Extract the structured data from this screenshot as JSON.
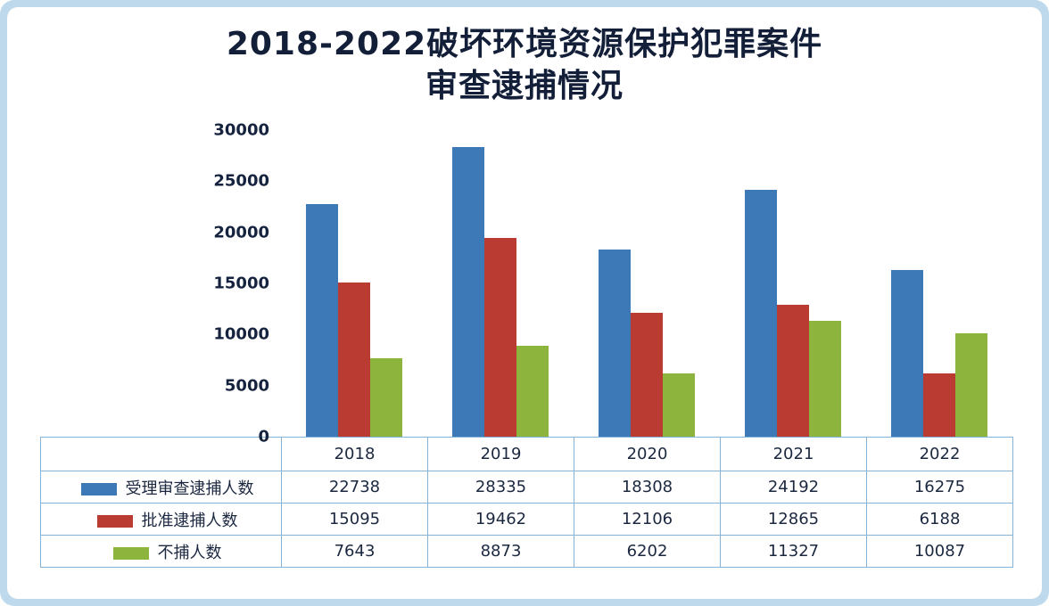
{
  "title": {
    "line1": "2018-2022破坏环境资源保护犯罪案件",
    "line2": "审查逮捕情况"
  },
  "colors": {
    "page_background": "#bed8ec",
    "card_background": "#ffffff",
    "series_blue": "#3d79b7",
    "series_red": "#ba3b32",
    "series_green": "#8db43d",
    "table_border": "#86b3d8",
    "text_dark": "#16233e"
  },
  "chart_data": {
    "type": "bar",
    "title": "2018-2022破坏环境资源保护犯罪案件审查逮捕情况",
    "categories": [
      "2018",
      "2019",
      "2020",
      "2021",
      "2022"
    ],
    "series": [
      {
        "name": "受理审查逮捕人数",
        "color": "#3d79b7",
        "values": [
          22738,
          28335,
          18308,
          24192,
          16275
        ]
      },
      {
        "name": "批准逮捕人数",
        "color": "#ba3b32",
        "values": [
          15095,
          19462,
          12106,
          12865,
          6188
        ]
      },
      {
        "name": "不捕人数",
        "color": "#8db43d",
        "values": [
          7643,
          8873,
          6202,
          11327,
          10087
        ]
      }
    ],
    "xlabel": "",
    "ylabel": "",
    "ylim": [
      0,
      30000
    ],
    "yticks": [
      30000,
      25000,
      20000,
      15000,
      10000,
      5000,
      0
    ],
    "grid": false,
    "legend_position": "table-left"
  }
}
